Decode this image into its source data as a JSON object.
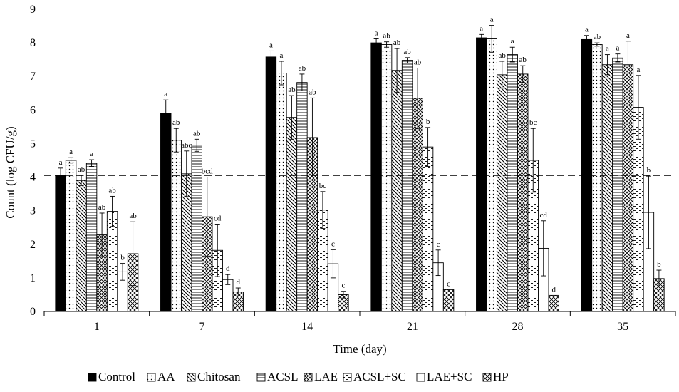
{
  "chart_data": {
    "type": "bar",
    "title": "",
    "xlabel": "Time (day)",
    "ylabel": "Count (log CFU/g)",
    "ylim": [
      0,
      9
    ],
    "yticks": [
      0,
      1,
      2,
      3,
      4,
      5,
      6,
      7,
      8,
      9
    ],
    "categories": [
      "1",
      "7",
      "14",
      "21",
      "28",
      "35"
    ],
    "reference_line": 4.05,
    "legend_position": "bottom",
    "series": [
      {
        "name": "Control",
        "pattern": "solid",
        "values": [
          4.05,
          5.9,
          7.58,
          8.0,
          8.15,
          8.1
        ],
        "errors": [
          0.22,
          0.4,
          0.18,
          0.12,
          0.1,
          0.12
        ],
        "labels": [
          "a",
          "a",
          "a",
          "a",
          "a",
          "a"
        ]
      },
      {
        "name": "AA",
        "pattern": "dots",
        "values": [
          4.5,
          5.1,
          7.1,
          7.95,
          8.12,
          7.95
        ],
        "errors": [
          0.08,
          0.35,
          0.35,
          0.08,
          0.4,
          0.05
        ],
        "labels": [
          "a",
          "ab",
          "a",
          "ab",
          "a",
          "ab"
        ]
      },
      {
        "name": "Chitosan",
        "pattern": "diag",
        "values": [
          3.9,
          4.1,
          5.78,
          7.18,
          7.05,
          7.35
        ],
        "errors": [
          0.15,
          0.68,
          0.65,
          0.65,
          0.4,
          0.3
        ],
        "labels": [
          "ab",
          "abc",
          "ab",
          "ab",
          "ab",
          "a"
        ]
      },
      {
        "name": "ACSL",
        "pattern": "hlines",
        "values": [
          4.42,
          4.95,
          6.82,
          7.48,
          7.65,
          7.55
        ],
        "errors": [
          0.1,
          0.18,
          0.25,
          0.08,
          0.22,
          0.12
        ],
        "labels": [
          "a",
          "ab",
          "ab",
          "ab",
          "a",
          "a"
        ]
      },
      {
        "name": "LAE",
        "pattern": "crossdiag",
        "values": [
          2.28,
          2.82,
          5.18,
          6.35,
          7.07,
          7.35
        ],
        "errors": [
          0.65,
          1.18,
          1.18,
          0.9,
          0.25,
          0.7
        ],
        "labels": [
          "ab",
          "bcd",
          "ab",
          "ab",
          "ab",
          "a"
        ]
      },
      {
        "name": "ACSL+SC",
        "pattern": "dashes",
        "values": [
          2.98,
          1.82,
          3.02,
          4.9,
          4.5,
          6.08
        ],
        "errors": [
          0.45,
          0.78,
          0.55,
          0.58,
          0.95,
          0.95
        ],
        "labels": [
          "ab",
          "cd",
          "bc",
          "b",
          "bc",
          "a"
        ]
      },
      {
        "name": "LAE+SC",
        "pattern": "empty",
        "values": [
          1.18,
          0.95,
          1.42,
          1.45,
          1.88,
          2.95
        ],
        "errors": [
          0.25,
          0.15,
          0.42,
          0.38,
          0.82,
          1.08
        ],
        "labels": [
          "b",
          "d",
          "c",
          "c",
          "cd",
          "b"
        ]
      },
      {
        "name": "HP",
        "pattern": "crosshatch",
        "values": [
          1.72,
          0.58,
          0.5,
          0.65,
          0.48,
          0.98
        ],
        "errors": [
          0.95,
          0.12,
          0.1,
          0.0,
          0.0,
          0.25
        ],
        "labels": [
          "ab",
          "d",
          "c",
          "c",
          "d",
          "b"
        ]
      }
    ]
  }
}
